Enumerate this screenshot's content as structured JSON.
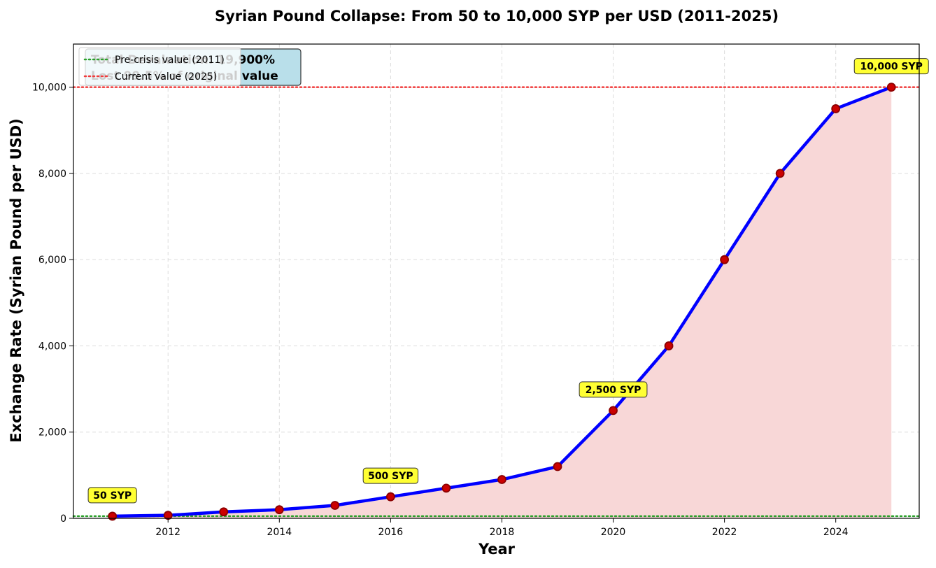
{
  "chart_data": {
    "type": "line",
    "title": "Syrian Pound Collapse: From 50 to 10,000 SYP per USD (2011-2025)",
    "xlabel": "Year",
    "ylabel": "Exchange Rate (Syrian Pound per USD)",
    "x": [
      2011,
      2012,
      2013,
      2014,
      2015,
      2016,
      2017,
      2018,
      2019,
      2020,
      2021,
      2022,
      2023,
      2024,
      2025
    ],
    "values": [
      50,
      70,
      150,
      200,
      300,
      500,
      700,
      900,
      1200,
      2500,
      4000,
      6000,
      8000,
      9500,
      10000
    ],
    "xlim": [
      2010.3,
      2025.5
    ],
    "ylim": [
      0,
      11000
    ],
    "xticks": [
      2012,
      2014,
      2016,
      2018,
      2020,
      2022,
      2024
    ],
    "xtick_labels": [
      "2012",
      "2014",
      "2016",
      "2018",
      "2020",
      "2022",
      "2024"
    ],
    "yticks": [
      0,
      2000,
      4000,
      6000,
      8000,
      10000
    ],
    "ytick_labels": [
      "0",
      "2,000",
      "4,000",
      "6,000",
      "8,000",
      "10,000"
    ],
    "grid": true,
    "fill_under_line": true,
    "reference_lines": [
      {
        "name": "Pre-crisis value (2011)",
        "y": 50,
        "style": "dotted",
        "color": "#2ca02c"
      },
      {
        "name": "Current value (2025)",
        "y": 10000,
        "style": "dotted",
        "color": "#f03c3c"
      }
    ],
    "annotations": [
      {
        "x": 2011,
        "y": 50,
        "text": "50 SYP"
      },
      {
        "x": 2016,
        "y": 500,
        "text": "500 SYP"
      },
      {
        "x": 2020,
        "y": 2500,
        "text": "2,500 SYP"
      },
      {
        "x": 2025,
        "y": 10000,
        "text": "10,000 SYP"
      }
    ],
    "info_box": {
      "lines": [
        "Total Devaluation: 19,900%",
        "Lost 99.5% of original value"
      ],
      "visible_fragments": [
        "0%",
        "al value"
      ]
    },
    "legend_position": "top-left",
    "colors": {
      "line": "#0000ff",
      "marker_fill": "#cc0000",
      "marker_edge": "#8b0000",
      "fill": "#f8d7d7",
      "annotation_bg": "#ffff33",
      "info_box_bg": "#b9dfea"
    }
  }
}
